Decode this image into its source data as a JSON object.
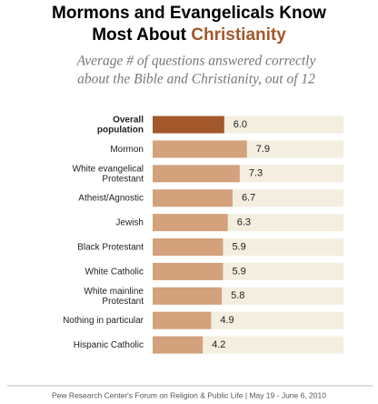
{
  "chart_data": {
    "type": "bar",
    "title_line1": "Mormons and Evangelicals Know",
    "title_line2": "Most About",
    "title_highlight": "Christianity",
    "subtitle": [
      "Average # of questions answered correctly",
      "about the Bible and Christianity, out of 12"
    ],
    "categories": [
      [
        "Overall",
        "population"
      ],
      [
        "Mormon"
      ],
      [
        "White evangelical",
        "Protestant"
      ],
      [
        "Atheist/Agnostic"
      ],
      [
        "Jewish"
      ],
      [
        "Black Protestant"
      ],
      [
        "White Catholic"
      ],
      [
        "White mainline",
        "Protestant"
      ],
      [
        "Nothing in particular"
      ],
      [
        "Hispanic Catholic"
      ]
    ],
    "values": [
      6.0,
      7.9,
      7.3,
      6.7,
      6.3,
      5.9,
      5.9,
      5.8,
      4.9,
      4.2
    ],
    "value_labels": [
      "6.0",
      "7.9",
      "7.3",
      "6.7",
      "6.3",
      "5.9",
      "5.9",
      "5.8",
      "4.9",
      "4.2"
    ],
    "colors": [
      "#a3582b",
      "#d3a17b",
      "#d3a17b",
      "#d3a17b",
      "#d3a17b",
      "#d3a17b",
      "#d3a17b",
      "#d3a17b",
      "#d3a17b",
      "#d3a17b"
    ],
    "xlim": [
      0,
      16
    ],
    "source": "Pew Research Center's Forum on Religion & Public Life  |  May 19 - June 6, 2010"
  }
}
